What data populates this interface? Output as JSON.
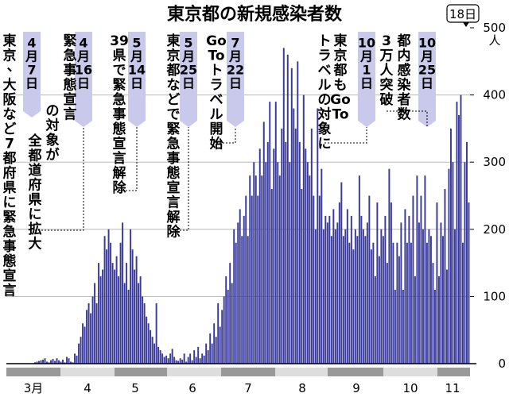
{
  "chart_data": {
    "type": "bar",
    "title": "東京都の新規感染者数",
    "ylabel": "人",
    "ylim": [
      0,
      500
    ],
    "yticks": [
      "0",
      "100",
      "200",
      "300",
      "400",
      "500"
    ],
    "xtick_labels": [
      "3月",
      "4",
      "5",
      "6",
      "7",
      "8",
      "9",
      "10",
      "11"
    ],
    "latest_label": "18日",
    "bar_color": "#3a3a9a",
    "tag_color": "#c9c9ec",
    "series": [
      {
        "values": [
          0,
          0,
          0,
          0,
          0,
          0,
          0,
          0,
          0,
          0,
          0,
          0,
          0,
          0,
          2,
          3,
          4,
          5,
          6,
          8,
          3,
          2,
          5,
          7,
          4,
          8,
          5,
          3,
          6,
          2,
          10,
          8,
          3,
          2,
          15,
          12,
          30,
          40,
          60,
          55,
          80,
          90,
          75,
          100,
          120,
          90,
          150,
          130,
          140,
          190,
          170,
          200,
          180,
          150,
          140,
          160,
          130,
          180,
          210,
          120,
          150,
          110,
          200,
          170,
          140,
          160,
          120,
          130,
          100,
          90,
          70,
          60,
          50,
          40,
          30,
          90,
          25,
          20,
          15,
          10,
          12,
          8,
          15,
          22,
          10,
          5,
          4,
          8,
          6,
          15,
          3,
          10,
          15,
          5,
          20,
          10,
          25,
          8,
          15,
          12,
          30,
          20,
          45,
          30,
          60,
          40,
          90,
          55,
          80,
          100,
          130,
          110,
          150,
          120,
          200,
          180,
          210,
          230,
          190,
          220,
          250,
          190,
          280,
          250,
          300,
          280,
          250,
          320,
          280,
          360,
          300,
          330,
          390,
          260,
          320,
          390,
          300,
          280,
          350,
          470,
          330,
          460,
          300,
          440,
          380,
          350,
          450,
          330,
          260,
          400,
          320,
          300,
          280,
          350,
          250,
          200,
          380,
          250,
          290,
          200,
          220,
          210,
          220,
          190,
          230,
          200,
          210,
          240,
          270,
          190,
          200,
          230,
          180,
          220,
          170,
          200,
          190,
          280,
          220,
          200,
          190,
          210,
          250,
          170,
          180,
          130,
          240,
          160,
          200,
          190,
          220,
          150,
          290,
          240,
          180,
          110,
          180,
          160,
          210,
          110,
          230,
          180,
          220,
          180,
          250,
          130,
          280,
          210,
          250,
          200,
          280,
          180,
          200,
          190,
          150,
          110,
          240,
          130,
          210,
          190,
          260,
          140,
          290,
          350,
          300,
          200,
          390,
          370,
          400,
          180,
          300,
          330,
          240
        ]
      }
    ],
    "annotations": [
      {
        "date": "4月7日",
        "text": "東京、大阪など7都府県に緊急事態宣言"
      },
      {
        "date": "4月16日",
        "text": "緊急事態宣言の対象が全都道府県に拡大"
      },
      {
        "date": "5月14日",
        "text": "39県で緊急事態宣言解除"
      },
      {
        "date": "5月25日",
        "text": "東京都などで緊急事態宣言解除"
      },
      {
        "date": "7月22日",
        "text": "GoToトラベル開始"
      },
      {
        "date": "10月1日",
        "text": "東京都もGoToトラベルの対象に"
      },
      {
        "date": "10月25日",
        "text": "都内感染者数3万人突破"
      }
    ]
  }
}
